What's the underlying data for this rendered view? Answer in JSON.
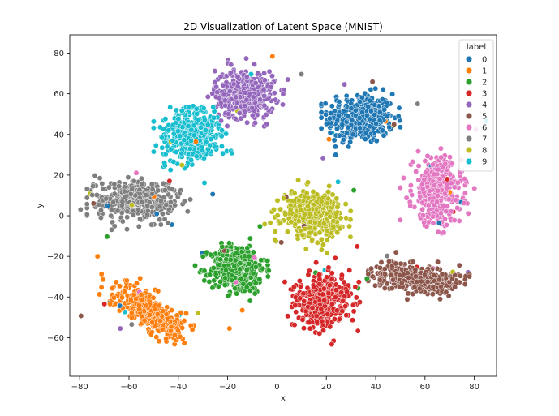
{
  "chart_data": {
    "type": "scatter",
    "title": "2D Visualization of Latent Space (MNIST)",
    "xlabel": "x",
    "ylabel": "y",
    "xlim": [
      -84,
      89
    ],
    "ylim": [
      -79,
      89
    ],
    "xticks": [
      -80,
      -60,
      -40,
      -20,
      0,
      20,
      40,
      60,
      80
    ],
    "yticks": [
      -60,
      -40,
      -20,
      0,
      20,
      40,
      60,
      80
    ],
    "grid": false,
    "legend": {
      "title": "label",
      "placement": "top-right"
    },
    "series": [
      {
        "name": "0",
        "color": "#1f77b4",
        "center": [
          34,
          48
        ],
        "spread": [
          12,
          11
        ],
        "extent_x": [
          18,
          50
        ],
        "extent_y": [
          30,
          70
        ]
      },
      {
        "name": "1",
        "color": "#ff7f0e",
        "center": [
          -52,
          -47
        ],
        "spread": [
          16,
          6
        ],
        "extent_x": [
          -78,
          -30
        ],
        "extent_y": [
          -72,
          -20
        ]
      },
      {
        "name": "2",
        "color": "#2ca02c",
        "center": [
          -16,
          -26
        ],
        "spread": [
          10,
          11
        ],
        "extent_x": [
          -35,
          2
        ],
        "extent_y": [
          -47,
          -5
        ]
      },
      {
        "name": "3",
        "color": "#d62728",
        "center": [
          19,
          -42
        ],
        "spread": [
          10,
          12
        ],
        "extent_x": [
          2,
          38
        ],
        "extent_y": [
          -67,
          -20
        ]
      },
      {
        "name": "4",
        "color": "#9467bd",
        "center": [
          -13,
          60
        ],
        "spread": [
          11,
          11
        ],
        "extent_x": [
          -28,
          6
        ],
        "extent_y": [
          38,
          82
        ]
      },
      {
        "name": "5",
        "color": "#8c564b",
        "center": [
          57,
          -31
        ],
        "spread": [
          16,
          6
        ],
        "extent_x": [
          37,
          78
        ],
        "extent_y": [
          -45,
          -18
        ]
      },
      {
        "name": "6",
        "color": "#e377c2",
        "center": [
          65,
          12
        ],
        "spread": [
          9,
          15
        ],
        "extent_x": [
          50,
          82
        ],
        "extent_y": [
          -12,
          36
        ]
      },
      {
        "name": "7",
        "color": "#7f7f7f",
        "center": [
          -58,
          8
        ],
        "spread": [
          14,
          9
        ],
        "extent_x": [
          -77,
          -26
        ],
        "extent_y": [
          -10,
          28
        ]
      },
      {
        "name": "8",
        "color": "#bcbd22",
        "center": [
          14,
          1
        ],
        "spread": [
          11,
          10
        ],
        "extent_x": [
          -5,
          33
        ],
        "extent_y": [
          -20,
          20
        ]
      },
      {
        "name": "9",
        "color": "#17becf",
        "center": [
          -35,
          40
        ],
        "spread": [
          11,
          12
        ],
        "extent_x": [
          -50,
          -16
        ],
        "extent_y": [
          15,
          63
        ]
      }
    ]
  }
}
